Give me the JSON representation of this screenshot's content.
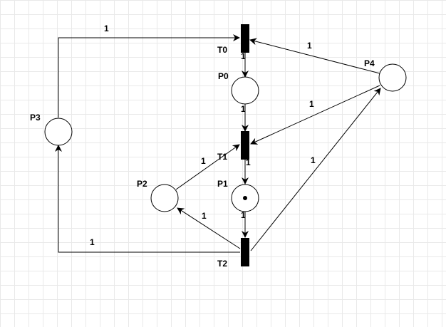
{
  "places": {
    "p0": {
      "label": "P0",
      "tokens": 0
    },
    "p1": {
      "label": "P1",
      "tokens": 1
    },
    "p2": {
      "label": "P2",
      "tokens": 0
    },
    "p3": {
      "label": "P3",
      "tokens": 0
    },
    "p4": {
      "label": "P4",
      "tokens": 0
    }
  },
  "transitions": {
    "t0": {
      "label": "T0"
    },
    "t1": {
      "label": "T1"
    },
    "t2": {
      "label": "T2"
    }
  },
  "arcs": {
    "p3_t0": {
      "from": "P3",
      "to": "T0",
      "weight": "1"
    },
    "p4_t0": {
      "from": "P4",
      "to": "T0",
      "weight": "1"
    },
    "t0_p0": {
      "from": "T0",
      "to": "P0",
      "weight": "1"
    },
    "p0_t1": {
      "from": "P0",
      "to": "T1",
      "weight": "1"
    },
    "p4_t1": {
      "from": "P4",
      "to": "T1",
      "weight": "1"
    },
    "p2_t1": {
      "from": "P2",
      "to": "T1",
      "weight": "1"
    },
    "t1_p1": {
      "from": "T1",
      "to": "P1",
      "weight": "1"
    },
    "p1_t2": {
      "from": "P1",
      "to": "T2",
      "weight": "1"
    },
    "t2_p4": {
      "from": "T2",
      "to": "P4",
      "weight": "1"
    },
    "t2_p2": {
      "from": "T2",
      "to": "P2",
      "weight": "1"
    },
    "t2_p3": {
      "from": "T2",
      "to": "P3",
      "weight": "1"
    }
  }
}
